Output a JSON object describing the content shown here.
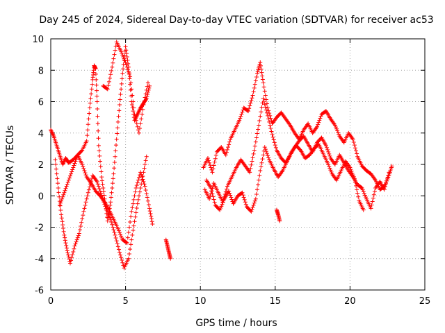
{
  "chart_data": {
    "type": "scatter",
    "title": "Day 245 of 2024, Sidereal Day-to-day VTEC variation (SDTVAR) for receiver ac53",
    "xlabel": "GPS time / hours",
    "ylabel": "SDTVAR / TECUs",
    "xlim": [
      0,
      25
    ],
    "ylim": [
      -6,
      10
    ],
    "xticks": [
      0,
      5,
      10,
      15,
      20,
      25
    ],
    "yticks": [
      -6,
      -4,
      -2,
      0,
      2,
      4,
      6,
      8,
      10
    ],
    "grid": true,
    "marker": "+",
    "series": [
      {
        "name": "SDTVAR",
        "color": "#ff0000",
        "segments": [
          {
            "x": [
              0.0,
              0.2,
              0.4,
              0.6,
              0.8,
              1.0,
              1.2,
              1.5,
              1.8,
              2.1,
              2.4,
              2.7,
              3.0,
              3.3,
              3.6,
              3.9,
              4.2,
              4.5,
              4.8,
              5.1,
              5.4,
              5.7,
              6.0,
              6.3,
              6.6,
              6.8
            ],
            "y": [
              4.2,
              3.8,
              3.2,
              2.6,
              2.0,
              2.4,
              2.1,
              2.3,
              2.6,
              2.0,
              1.2,
              0.8,
              0.3,
              0.0,
              -0.4,
              -0.9,
              -1.5,
              -2.1,
              -2.8,
              -3.0,
              -1.0,
              0.5,
              1.5,
              0.6,
              -0.8,
              -1.8
            ]
          },
          {
            "x": [
              0.3,
              0.5,
              0.7,
              0.9,
              1.1,
              1.3,
              1.6,
              1.9,
              2.2,
              2.5,
              2.8,
              3.1,
              3.4,
              3.7,
              4.0,
              4.3,
              4.6,
              4.9,
              5.2,
              5.5,
              5.8,
              6.1,
              6.4
            ],
            "y": [
              2.3,
              0.5,
              -1.2,
              -2.5,
              -3.5,
              -4.3,
              -3.2,
              -2.4,
              -1.0,
              0.2,
              1.3,
              0.9,
              0.0,
              -0.8,
              -1.5,
              -2.5,
              -3.6,
              -4.6,
              -4.0,
              -2.2,
              -0.5,
              1.0,
              2.5
            ]
          },
          {
            "x": [
              0.6,
              0.9,
              1.2,
              1.5,
              1.8,
              2.1,
              2.4,
              2.6,
              2.8,
              2.9,
              3.0,
              3.1,
              3.2,
              3.4,
              3.6,
              3.8,
              4.0,
              4.2,
              4.4,
              4.6,
              4.8,
              5.0,
              5.2,
              5.4,
              5.6,
              5.8,
              6.0,
              6.2,
              6.4,
              6.6
            ],
            "y": [
              -0.6,
              0.2,
              1.0,
              1.8,
              2.6,
              2.9,
              3.5,
              5.6,
              7.4,
              8.3,
              8.1,
              6.0,
              3.2,
              1.2,
              -0.2,
              -1.6,
              -0.4,
              1.4,
              3.6,
              5.8,
              7.8,
              9.5,
              8.2,
              6.0,
              4.8,
              5.2,
              5.6,
              5.9,
              6.2,
              7.0
            ]
          },
          {
            "x": [
              3.5,
              3.8,
              4.1,
              4.4,
              4.7,
              5.0,
              5.3,
              5.6,
              5.9,
              6.2,
              6.5
            ],
            "y": [
              7.0,
              6.8,
              8.2,
              9.8,
              9.2,
              8.5,
              7.6,
              5.2,
              4.0,
              5.8,
              7.2
            ]
          },
          {
            "x": [
              7.7,
              7.8,
              7.9,
              8.0
            ],
            "y": [
              -2.8,
              -3.2,
              -3.6,
              -4.0
            ]
          },
          {
            "x": [
              10.2,
              10.5,
              10.8,
              11.1,
              11.4,
              11.7,
              12.0,
              12.3,
              12.6,
              12.9,
              13.2,
              13.5,
              13.8,
              14.0,
              14.2,
              14.5,
              14.8,
              15.1,
              15.4,
              15.7,
              16.0,
              16.3,
              16.6,
              16.9,
              17.2,
              17.5,
              17.8,
              18.1,
              18.4,
              18.7,
              19.0,
              19.3,
              19.6,
              19.9,
              20.2,
              20.5,
              20.8,
              21.1,
              21.4,
              21.7,
              22.0,
              22.3,
              22.6,
              22.8
            ],
            "y": [
              1.8,
              2.4,
              1.5,
              2.8,
              3.1,
              2.6,
              3.6,
              4.2,
              4.8,
              5.6,
              5.4,
              6.4,
              7.8,
              8.5,
              7.2,
              5.6,
              4.6,
              5.0,
              5.3,
              4.9,
              4.5,
              4.0,
              3.6,
              4.2,
              4.6,
              4.0,
              4.4,
              5.2,
              5.4,
              4.9,
              4.5,
              3.8,
              3.4,
              4.0,
              3.6,
              2.5,
              1.9,
              1.6,
              1.4,
              1.0,
              0.4,
              0.6,
              1.3,
              1.9
            ]
          },
          {
            "x": [
              10.3,
              10.6,
              10.9,
              11.2,
              11.5,
              11.8,
              12.1,
              12.4,
              12.7,
              13.0,
              13.3,
              13.6,
              13.9,
              14.2,
              14.5,
              14.8,
              15.1,
              15.4,
              15.7,
              16.0,
              16.3,
              16.6,
              16.9,
              17.2,
              17.5,
              17.8,
              18.1,
              18.4,
              18.7,
              19.0,
              19.3,
              19.6,
              19.9,
              20.2,
              20.5,
              20.8,
              21.1,
              21.4,
              21.7,
              22.0,
              22.3,
              22.6
            ],
            "y": [
              0.4,
              -0.2,
              0.8,
              0.2,
              -0.4,
              0.6,
              1.2,
              1.8,
              2.3,
              1.9,
              1.5,
              2.9,
              4.5,
              6.2,
              5.1,
              3.9,
              2.9,
              2.4,
              2.1,
              2.6,
              3.1,
              3.5,
              3.8,
              3.3,
              2.8,
              3.4,
              3.7,
              3.2,
              2.4,
              2.0,
              2.6,
              2.1,
              1.6,
              1.2,
              0.7,
              0.5,
              -0.2,
              -0.8,
              0.5,
              0.9,
              0.4,
              1.5
            ]
          },
          {
            "x": [
              10.4,
              10.7,
              11.0,
              11.3,
              11.6,
              11.9,
              12.2,
              12.5,
              12.8,
              13.1,
              13.4,
              13.7,
              14.0,
              14.3,
              14.6,
              14.9,
              15.2,
              15.5,
              15.8,
              16.1,
              16.4,
              16.7,
              17.0,
              17.3,
              17.6,
              17.9,
              18.2,
              18.5,
              18.8,
              19.1,
              19.4,
              19.7,
              20.0,
              20.3,
              20.6,
              20.9
            ],
            "y": [
              1.0,
              0.5,
              -0.6,
              -0.9,
              -0.2,
              0.3,
              -0.5,
              0.0,
              0.2,
              -0.7,
              -1.0,
              -0.2,
              1.6,
              3.1,
              2.3,
              1.7,
              1.2,
              1.6,
              2.2,
              2.8,
              3.2,
              2.9,
              2.4,
              2.6,
              3.0,
              3.3,
              2.7,
              2.1,
              1.4,
              1.0,
              1.6,
              2.2,
              1.8,
              1.1,
              -0.3,
              -0.9
            ]
          },
          {
            "x": [
              15.1,
              15.2,
              15.3
            ],
            "y": [
              -0.9,
              -1.2,
              -1.6
            ]
          }
        ]
      }
    ]
  }
}
